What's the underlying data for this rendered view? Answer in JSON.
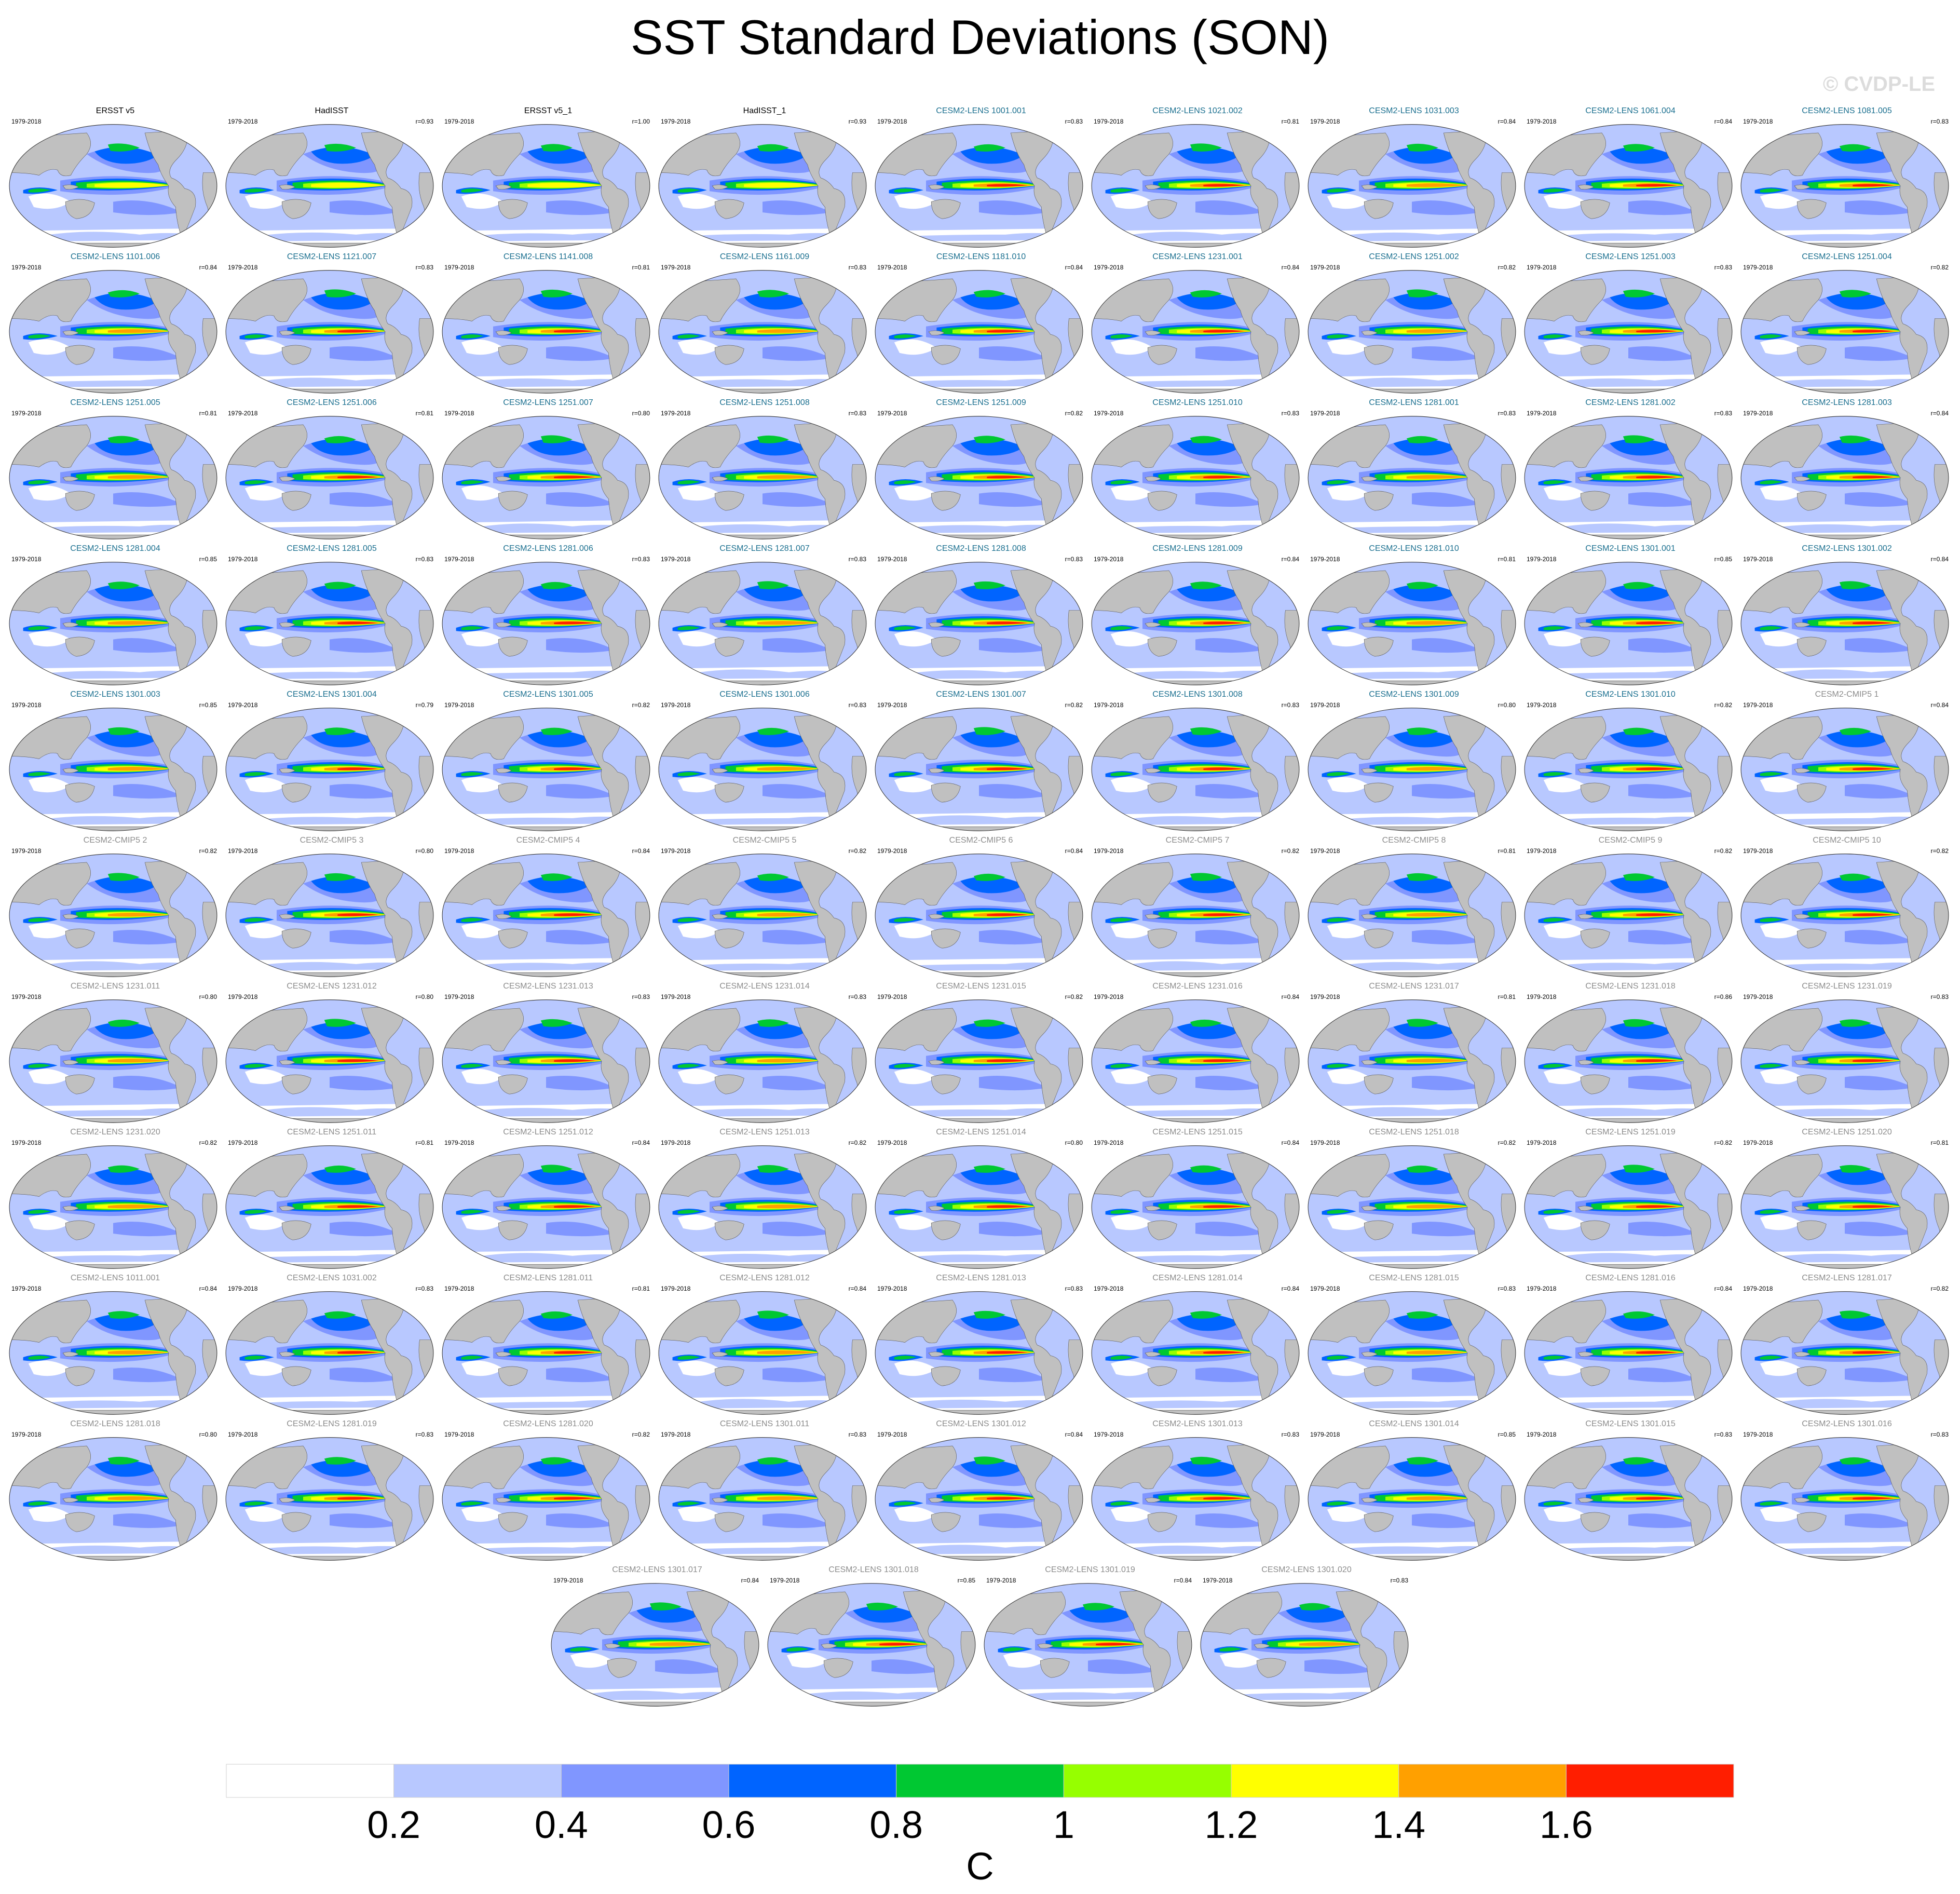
{
  "title": "SST Standard Deviations (SON)",
  "watermark": "© CVDP-LE",
  "colors": {
    "obs_title": "#000000",
    "lens_title": "#1a6f8f",
    "gray_title": "#8c8c8c",
    "land": "#c0c0c0",
    "coast": "#555555"
  },
  "chart_data": {
    "type": "heatmap",
    "title": "SST Standard Deviations (SON)",
    "variable": "SST standard deviation",
    "season": "SON",
    "units": "C",
    "colorbar": {
      "label": "C",
      "levels": [
        0.2,
        0.4,
        0.6,
        0.8,
        1.0,
        1.2,
        1.4,
        1.6
      ],
      "tick_labels": [
        "0.2",
        "0.4",
        "0.6",
        "0.8",
        "1",
        "1.2",
        "1.4",
        "1.6"
      ],
      "colors": [
        "#ffffff",
        "#b8c8ff",
        "#8096ff",
        "#0064ff",
        "#00c832",
        "#96ff00",
        "#ffff00",
        "#ffa000",
        "#ff1e00"
      ]
    },
    "panels": [
      {
        "name": "ERSST v5",
        "years": "1979-2018",
        "corr": "",
        "group": "obs"
      },
      {
        "name": "HadISST",
        "years": "1979-2018",
        "corr": "r=0.93",
        "group": "obs"
      },
      {
        "name": "ERSST v5_1",
        "years": "1979-2018",
        "corr": "r=1.00",
        "group": "obs"
      },
      {
        "name": "HadISST_1",
        "years": "1979-2018",
        "corr": "r=0.93",
        "group": "obs"
      },
      {
        "name": "CESM2-LENS 1001.001",
        "years": "1979-2018",
        "corr": "r=0.83",
        "group": "lens"
      },
      {
        "name": "CESM2-LENS 1021.002",
        "years": "1979-2018",
        "corr": "r=0.81",
        "group": "lens"
      },
      {
        "name": "CESM2-LENS 1031.003",
        "years": "1979-2018",
        "corr": "r=0.84",
        "group": "lens"
      },
      {
        "name": "CESM2-LENS 1061.004",
        "years": "1979-2018",
        "corr": "r=0.84",
        "group": "lens"
      },
      {
        "name": "CESM2-LENS 1081.005",
        "years": "1979-2018",
        "corr": "r=0.83",
        "group": "lens"
      },
      {
        "name": "CESM2-LENS 1101.006",
        "years": "1979-2018",
        "corr": "r=0.84",
        "group": "lens"
      },
      {
        "name": "CESM2-LENS 1121.007",
        "years": "1979-2018",
        "corr": "r=0.83",
        "group": "lens"
      },
      {
        "name": "CESM2-LENS 1141.008",
        "years": "1979-2018",
        "corr": "r=0.81",
        "group": "lens"
      },
      {
        "name": "CESM2-LENS 1161.009",
        "years": "1979-2018",
        "corr": "r=0.83",
        "group": "lens"
      },
      {
        "name": "CESM2-LENS 1181.010",
        "years": "1979-2018",
        "corr": "r=0.84",
        "group": "lens"
      },
      {
        "name": "CESM2-LENS 1231.001",
        "years": "1979-2018",
        "corr": "r=0.84",
        "group": "lens"
      },
      {
        "name": "CESM2-LENS 1251.002",
        "years": "1979-2018",
        "corr": "r=0.82",
        "group": "lens"
      },
      {
        "name": "CESM2-LENS 1251.003",
        "years": "1979-2018",
        "corr": "r=0.83",
        "group": "lens"
      },
      {
        "name": "CESM2-LENS 1251.004",
        "years": "1979-2018",
        "corr": "r=0.82",
        "group": "lens"
      },
      {
        "name": "CESM2-LENS 1251.005",
        "years": "1979-2018",
        "corr": "r=0.81",
        "group": "lens"
      },
      {
        "name": "CESM2-LENS 1251.006",
        "years": "1979-2018",
        "corr": "r=0.81",
        "group": "lens"
      },
      {
        "name": "CESM2-LENS 1251.007",
        "years": "1979-2018",
        "corr": "r=0.80",
        "group": "lens"
      },
      {
        "name": "CESM2-LENS 1251.008",
        "years": "1979-2018",
        "corr": "r=0.83",
        "group": "lens"
      },
      {
        "name": "CESM2-LENS 1251.009",
        "years": "1979-2018",
        "corr": "r=0.82",
        "group": "lens"
      },
      {
        "name": "CESM2-LENS 1251.010",
        "years": "1979-2018",
        "corr": "r=0.83",
        "group": "lens"
      },
      {
        "name": "CESM2-LENS 1281.001",
        "years": "1979-2018",
        "corr": "r=0.83",
        "group": "lens"
      },
      {
        "name": "CESM2-LENS 1281.002",
        "years": "1979-2018",
        "corr": "r=0.83",
        "group": "lens"
      },
      {
        "name": "CESM2-LENS 1281.003",
        "years": "1979-2018",
        "corr": "r=0.84",
        "group": "lens"
      },
      {
        "name": "CESM2-LENS 1281.004",
        "years": "1979-2018",
        "corr": "r=0.85",
        "group": "lens"
      },
      {
        "name": "CESM2-LENS 1281.005",
        "years": "1979-2018",
        "corr": "r=0.83",
        "group": "lens"
      },
      {
        "name": "CESM2-LENS 1281.006",
        "years": "1979-2018",
        "corr": "r=0.83",
        "group": "lens"
      },
      {
        "name": "CESM2-LENS 1281.007",
        "years": "1979-2018",
        "corr": "r=0.83",
        "group": "lens"
      },
      {
        "name": "CESM2-LENS 1281.008",
        "years": "1979-2018",
        "corr": "r=0.83",
        "group": "lens"
      },
      {
        "name": "CESM2-LENS 1281.009",
        "years": "1979-2018",
        "corr": "r=0.84",
        "group": "lens"
      },
      {
        "name": "CESM2-LENS 1281.010",
        "years": "1979-2018",
        "corr": "r=0.81",
        "group": "lens"
      },
      {
        "name": "CESM2-LENS 1301.001",
        "years": "1979-2018",
        "corr": "r=0.85",
        "group": "lens"
      },
      {
        "name": "CESM2-LENS 1301.002",
        "years": "1979-2018",
        "corr": "r=0.84",
        "group": "lens"
      },
      {
        "name": "CESM2-LENS 1301.003",
        "years": "1979-2018",
        "corr": "r=0.85",
        "group": "lens"
      },
      {
        "name": "CESM2-LENS 1301.004",
        "years": "1979-2018",
        "corr": "r=0.79",
        "group": "lens"
      },
      {
        "name": "CESM2-LENS 1301.005",
        "years": "1979-2018",
        "corr": "r=0.82",
        "group": "lens"
      },
      {
        "name": "CESM2-LENS 1301.006",
        "years": "1979-2018",
        "corr": "r=0.83",
        "group": "lens"
      },
      {
        "name": "CESM2-LENS 1301.007",
        "years": "1979-2018",
        "corr": "r=0.82",
        "group": "lens"
      },
      {
        "name": "CESM2-LENS 1301.008",
        "years": "1979-2018",
        "corr": "r=0.83",
        "group": "lens"
      },
      {
        "name": "CESM2-LENS 1301.009",
        "years": "1979-2018",
        "corr": "r=0.80",
        "group": "lens"
      },
      {
        "name": "CESM2-LENS 1301.010",
        "years": "1979-2018",
        "corr": "r=0.82",
        "group": "lens"
      },
      {
        "name": "CESM2-CMIP5 1",
        "years": "1979-2018",
        "corr": "r=0.84",
        "group": "cmip5"
      },
      {
        "name": "CESM2-CMIP5 2",
        "years": "1979-2018",
        "corr": "r=0.82",
        "group": "cmip5"
      },
      {
        "name": "CESM2-CMIP5 3",
        "years": "1979-2018",
        "corr": "r=0.80",
        "group": "cmip5"
      },
      {
        "name": "CESM2-CMIP5 4",
        "years": "1979-2018",
        "corr": "r=0.84",
        "group": "cmip5"
      },
      {
        "name": "CESM2-CMIP5 5",
        "years": "1979-2018",
        "corr": "r=0.82",
        "group": "cmip5"
      },
      {
        "name": "CESM2-CMIP5 6",
        "years": "1979-2018",
        "corr": "r=0.84",
        "group": "cmip5"
      },
      {
        "name": "CESM2-CMIP5 7",
        "years": "1979-2018",
        "corr": "r=0.82",
        "group": "cmip5"
      },
      {
        "name": "CESM2-CMIP5 8",
        "years": "1979-2018",
        "corr": "r=0.81",
        "group": "cmip5"
      },
      {
        "name": "CESM2-CMIP5 9",
        "years": "1979-2018",
        "corr": "r=0.82",
        "group": "cmip5"
      },
      {
        "name": "CESM2-CMIP5 10",
        "years": "1979-2018",
        "corr": "r=0.82",
        "group": "cmip5"
      },
      {
        "name": "CESM2-LENS 1231.011",
        "years": "1979-2018",
        "corr": "r=0.80",
        "group": "gray"
      },
      {
        "name": "CESM2-LENS 1231.012",
        "years": "1979-2018",
        "corr": "r=0.80",
        "group": "gray"
      },
      {
        "name": "CESM2-LENS 1231.013",
        "years": "1979-2018",
        "corr": "r=0.83",
        "group": "gray"
      },
      {
        "name": "CESM2-LENS 1231.014",
        "years": "1979-2018",
        "corr": "r=0.83",
        "group": "gray"
      },
      {
        "name": "CESM2-LENS 1231.015",
        "years": "1979-2018",
        "corr": "r=0.82",
        "group": "gray"
      },
      {
        "name": "CESM2-LENS 1231.016",
        "years": "1979-2018",
        "corr": "r=0.84",
        "group": "gray"
      },
      {
        "name": "CESM2-LENS 1231.017",
        "years": "1979-2018",
        "corr": "r=0.81",
        "group": "gray"
      },
      {
        "name": "CESM2-LENS 1231.018",
        "years": "1979-2018",
        "corr": "r=0.86",
        "group": "gray"
      },
      {
        "name": "CESM2-LENS 1231.019",
        "years": "1979-2018",
        "corr": "r=0.83",
        "group": "gray"
      },
      {
        "name": "CESM2-LENS 1231.020",
        "years": "1979-2018",
        "corr": "r=0.82",
        "group": "gray"
      },
      {
        "name": "CESM2-LENS 1251.011",
        "years": "1979-2018",
        "corr": "r=0.81",
        "group": "gray"
      },
      {
        "name": "CESM2-LENS 1251.012",
        "years": "1979-2018",
        "corr": "r=0.84",
        "group": "gray"
      },
      {
        "name": "CESM2-LENS 1251.013",
        "years": "1979-2018",
        "corr": "r=0.82",
        "group": "gray"
      },
      {
        "name": "CESM2-LENS 1251.014",
        "years": "1979-2018",
        "corr": "r=0.80",
        "group": "gray"
      },
      {
        "name": "CESM2-LENS 1251.015",
        "years": "1979-2018",
        "corr": "r=0.84",
        "group": "gray"
      },
      {
        "name": "CESM2-LENS 1251.018",
        "years": "1979-2018",
        "corr": "r=0.82",
        "group": "gray"
      },
      {
        "name": "CESM2-LENS 1251.019",
        "years": "1979-2018",
        "corr": "r=0.82",
        "group": "gray"
      },
      {
        "name": "CESM2-LENS 1251.020",
        "years": "1979-2018",
        "corr": "r=0.81",
        "group": "gray"
      },
      {
        "name": "CESM2-LENS 1011.001",
        "years": "1979-2018",
        "corr": "r=0.84",
        "group": "gray"
      },
      {
        "name": "CESM2-LENS 1031.002",
        "years": "1979-2018",
        "corr": "r=0.83",
        "group": "gray"
      },
      {
        "name": "CESM2-LENS 1281.011",
        "years": "1979-2018",
        "corr": "r=0.81",
        "group": "gray"
      },
      {
        "name": "CESM2-LENS 1281.012",
        "years": "1979-2018",
        "corr": "r=0.84",
        "group": "gray"
      },
      {
        "name": "CESM2-LENS 1281.013",
        "years": "1979-2018",
        "corr": "r=0.83",
        "group": "gray"
      },
      {
        "name": "CESM2-LENS 1281.014",
        "years": "1979-2018",
        "corr": "r=0.84",
        "group": "gray"
      },
      {
        "name": "CESM2-LENS 1281.015",
        "years": "1979-2018",
        "corr": "r=0.83",
        "group": "gray"
      },
      {
        "name": "CESM2-LENS 1281.016",
        "years": "1979-2018",
        "corr": "r=0.84",
        "group": "gray"
      },
      {
        "name": "CESM2-LENS 1281.017",
        "years": "1979-2018",
        "corr": "r=0.82",
        "group": "gray"
      },
      {
        "name": "CESM2-LENS 1281.018",
        "years": "1979-2018",
        "corr": "r=0.80",
        "group": "gray"
      },
      {
        "name": "CESM2-LENS 1281.019",
        "years": "1979-2018",
        "corr": "r=0.83",
        "group": "gray"
      },
      {
        "name": "CESM2-LENS 1281.020",
        "years": "1979-2018",
        "corr": "r=0.82",
        "group": "gray"
      },
      {
        "name": "CESM2-LENS 1301.011",
        "years": "1979-2018",
        "corr": "r=0.83",
        "group": "gray"
      },
      {
        "name": "CESM2-LENS 1301.012",
        "years": "1979-2018",
        "corr": "r=0.84",
        "group": "gray"
      },
      {
        "name": "CESM2-LENS 1301.013",
        "years": "1979-2018",
        "corr": "r=0.83",
        "group": "gray"
      },
      {
        "name": "CESM2-LENS 1301.014",
        "years": "1979-2018",
        "corr": "r=0.85",
        "group": "gray"
      },
      {
        "name": "CESM2-LENS 1301.015",
        "years": "1979-2018",
        "corr": "r=0.83",
        "group": "gray"
      },
      {
        "name": "CESM2-LENS 1301.016",
        "years": "1979-2018",
        "corr": "r=0.83",
        "group": "gray"
      },
      {
        "name": "CESM2-LENS 1301.017",
        "years": "1979-2018",
        "corr": "r=0.84",
        "group": "gray"
      },
      {
        "name": "CESM2-LENS 1301.018",
        "years": "1979-2018",
        "corr": "r=0.85",
        "group": "gray"
      },
      {
        "name": "CESM2-LENS 1301.019",
        "years": "1979-2018",
        "corr": "r=0.84",
        "group": "gray"
      },
      {
        "name": "CESM2-LENS 1301.020",
        "years": "1979-2018",
        "corr": "r=0.83",
        "group": "gray"
      }
    ]
  }
}
